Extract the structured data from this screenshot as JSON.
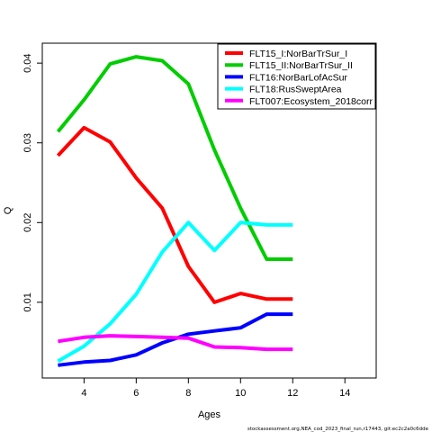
{
  "chart_data": {
    "type": "line",
    "xlabel": "Ages",
    "ylabel": "Q",
    "xlim": [
      2.4,
      15.2
    ],
    "ylim": [
      0.0005,
      0.0425
    ],
    "xticks": [
      4,
      6,
      8,
      10,
      12,
      14
    ],
    "yticks": [
      0.01,
      0.02,
      0.03,
      0.04
    ],
    "ytick_labels": [
      "0.01",
      "0.02",
      "0.03",
      "0.04"
    ],
    "grid": false,
    "legend_position": "top-right",
    "x": [
      3,
      4,
      5,
      6,
      7,
      8,
      9,
      10,
      11,
      12
    ],
    "series": [
      {
        "name": "FLT15_I:NorBarTrSur_I",
        "color": "#ff0000",
        "values": [
          0.0284,
          0.0319,
          0.0301,
          0.0256,
          0.0218,
          0.0145,
          0.01,
          0.0111,
          0.0104,
          0.0104
        ]
      },
      {
        "name": "FLT15_II:NorBarTrSur_II",
        "color": "#00cd00",
        "values": [
          0.0314,
          0.0354,
          0.0399,
          0.0408,
          0.0403,
          0.0374,
          0.0291,
          0.0218,
          0.0154,
          0.0154
        ]
      },
      {
        "name": "FLT16:NorBarLofAcSur",
        "color": "#0000ff",
        "values": [
          0.0021,
          0.0025,
          0.0027,
          0.0034,
          0.0049,
          0.006,
          0.0064,
          0.0068,
          0.0085,
          0.0085
        ]
      },
      {
        "name": "FLT18:RusSweptArea",
        "color": "#00ffff",
        "values": [
          0.0026,
          0.0045,
          0.0073,
          0.011,
          0.0163,
          0.02,
          0.0165,
          0.02,
          0.0197,
          0.0197
        ]
      },
      {
        "name": "FLT007:Ecosystem_2018corr",
        "color": "#ff00ff",
        "values": [
          0.0051,
          0.0056,
          0.0058,
          0.0057,
          0.0056,
          0.0055,
          0.0044,
          0.0043,
          0.0041,
          0.0041
        ]
      }
    ]
  },
  "footer": {
    "text": "stockassessment.org,NEA_cod_2023_final_run,r17443, git:ec2c2a0c6dde"
  }
}
